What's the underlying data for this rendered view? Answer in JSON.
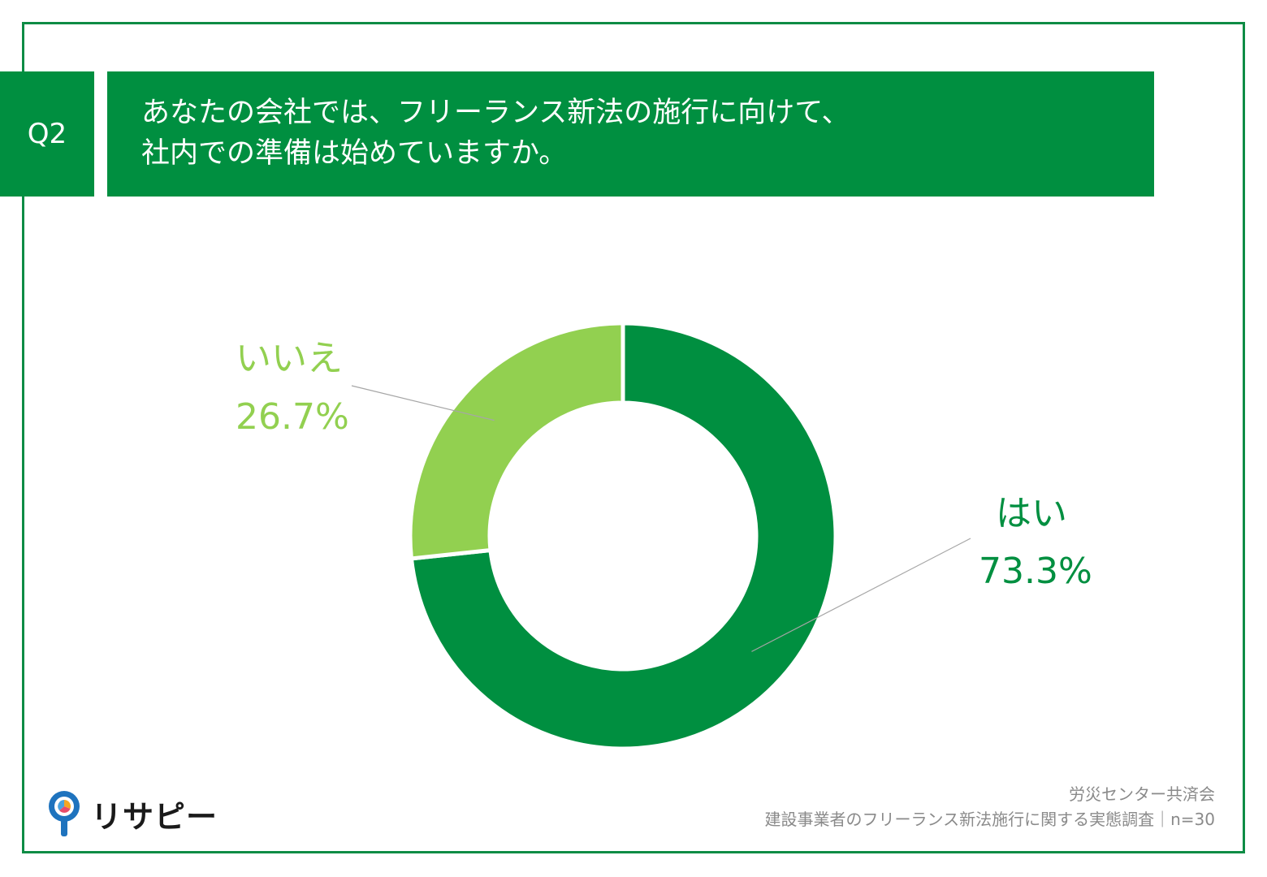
{
  "question": {
    "number": "Q2",
    "line1": "あなたの会社では、フリーランス新法の施行に向けて、",
    "line2": "社内での準備は始めていますか。"
  },
  "chart_data": {
    "type": "pie",
    "donut": true,
    "categories": [
      "はい",
      "いいえ"
    ],
    "values": [
      73.3,
      26.7
    ],
    "value_labels": [
      "73.3%",
      "26.7%"
    ],
    "colors": [
      "#008f40",
      "#92d050"
    ]
  },
  "source": {
    "line1": "労災センター共済会",
    "line2": "建設事業者のフリーランス新法施行に関する実態調査｜n=30"
  },
  "logo": {
    "text": "リサピー"
  }
}
